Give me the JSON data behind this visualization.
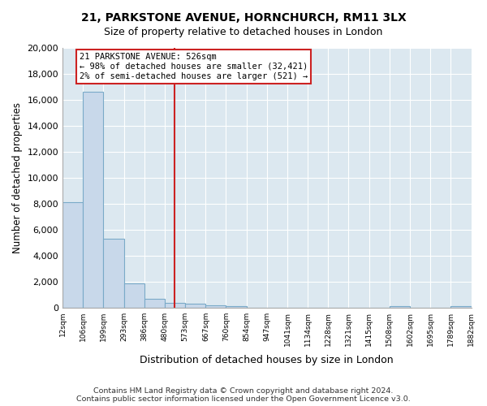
{
  "title1": "21, PARKSTONE AVENUE, HORNCHURCH, RM11 3LX",
  "title2": "Size of property relative to detached houses in London",
  "xlabel": "Distribution of detached houses by size in London",
  "ylabel": "Number of detached properties",
  "bar_edges": [
    12,
    106,
    199,
    293,
    386,
    480,
    573,
    667,
    760,
    854,
    947,
    1041,
    1134,
    1228,
    1321,
    1415,
    1508,
    1602,
    1695,
    1789,
    1882
  ],
  "bar_heights": [
    8100,
    16600,
    5300,
    1850,
    700,
    350,
    300,
    200,
    150,
    0,
    0,
    0,
    0,
    0,
    0,
    0,
    100,
    0,
    0,
    150
  ],
  "bar_color": "#c8d8ea",
  "bar_edgecolor": "#7aaac8",
  "property_value": 526,
  "vline_color": "#cc2222",
  "annotation_title": "21 PARKSTONE AVENUE: 526sqm",
  "annotation_line1": "← 98% of detached houses are smaller (32,421)",
  "annotation_line2": "2% of semi-detached houses are larger (521) →",
  "annotation_box_edgecolor": "#cc2222",
  "annotation_box_facecolor": "#ffffff",
  "tick_labels": [
    "12sqm",
    "106sqm",
    "199sqm",
    "293sqm",
    "386sqm",
    "480sqm",
    "573sqm",
    "667sqm",
    "760sqm",
    "854sqm",
    "947sqm",
    "1041sqm",
    "1134sqm",
    "1228sqm",
    "1321sqm",
    "1415sqm",
    "1508sqm",
    "1602sqm",
    "1695sqm",
    "1789sqm",
    "1882sqm"
  ],
  "ylim": [
    0,
    20000
  ],
  "yticks": [
    0,
    2000,
    4000,
    6000,
    8000,
    10000,
    12000,
    14000,
    16000,
    18000,
    20000
  ],
  "footer1": "Contains HM Land Registry data © Crown copyright and database right 2024.",
  "footer2": "Contains public sector information licensed under the Open Government Licence v3.0.",
  "fig_bg_color": "#ffffff",
  "plot_bg_color": "#dce8f0",
  "grid_color": "#ffffff"
}
